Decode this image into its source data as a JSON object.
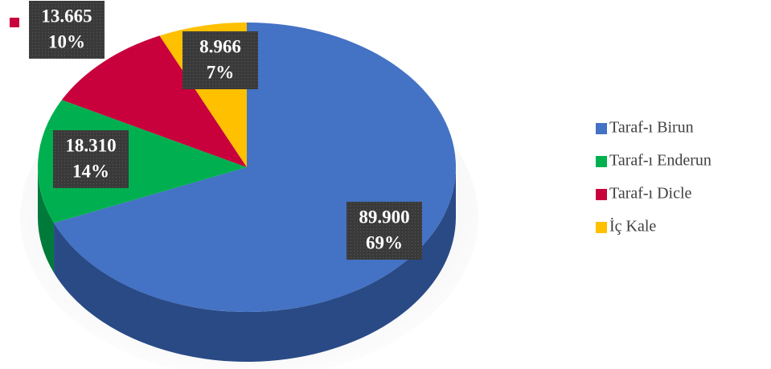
{
  "chart_data": {
    "type": "pie3d",
    "categories": [
      "Taraf-ı Birun",
      "Taraf-ı Enderun",
      "Taraf-ı Dicle",
      "İç Kale"
    ],
    "values": [
      89900,
      18310,
      13665,
      8966
    ],
    "value_labels": [
      "89.900",
      "18.310",
      "13.665",
      "8.966"
    ],
    "percent_labels": [
      "69%",
      "14%",
      "10%",
      "7%"
    ],
    "colors": [
      "#4472c4",
      "#00b050",
      "#c8003c",
      "#ffc000"
    ],
    "side_colors": [
      "#2a4a86",
      "#007a3a",
      "#8a0028",
      "#b88a00"
    ],
    "legend": "right"
  }
}
